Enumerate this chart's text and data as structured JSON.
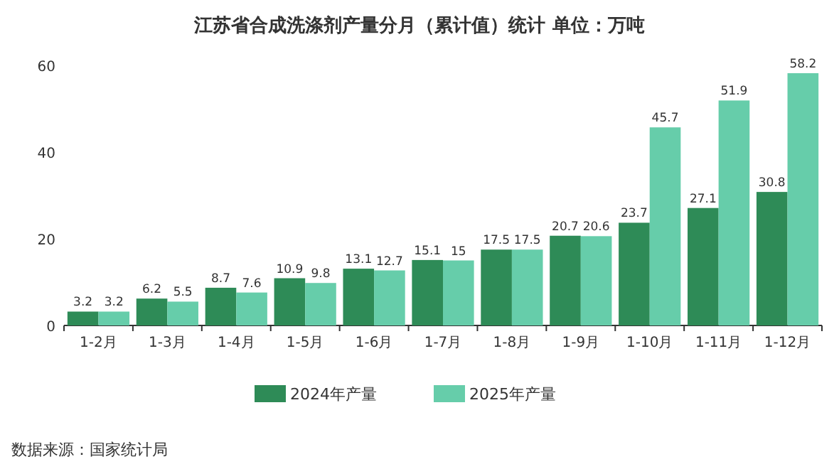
{
  "chart_data": {
    "type": "bar",
    "title": "江苏省合成洗涤剂产量分月（累计值）统计  单位：万吨",
    "categories": [
      "1-2月",
      "1-3月",
      "1-4月",
      "1-5月",
      "1-6月",
      "1-7月",
      "1-8月",
      "1-9月",
      "1-10月",
      "1-11月",
      "1-12月"
    ],
    "series": [
      {
        "name": "2024年产量",
        "color": "#2e8b57",
        "values": [
          3.2,
          6.2,
          8.7,
          10.9,
          13.1,
          15.1,
          17.5,
          20.7,
          23.7,
          27.1,
          30.8
        ]
      },
      {
        "name": "2025年产量",
        "color": "#66cdaa",
        "values": [
          3.2,
          5.5,
          7.6,
          9.8,
          12.7,
          15,
          17.5,
          20.6,
          45.7,
          51.9,
          58.2
        ]
      }
    ],
    "ylim": [
      0,
      60
    ],
    "yticks": [
      0,
      20,
      40,
      60
    ],
    "legend": "bottom",
    "data_labels": true,
    "annotations": [
      "数据来源：国家统计局"
    ]
  }
}
